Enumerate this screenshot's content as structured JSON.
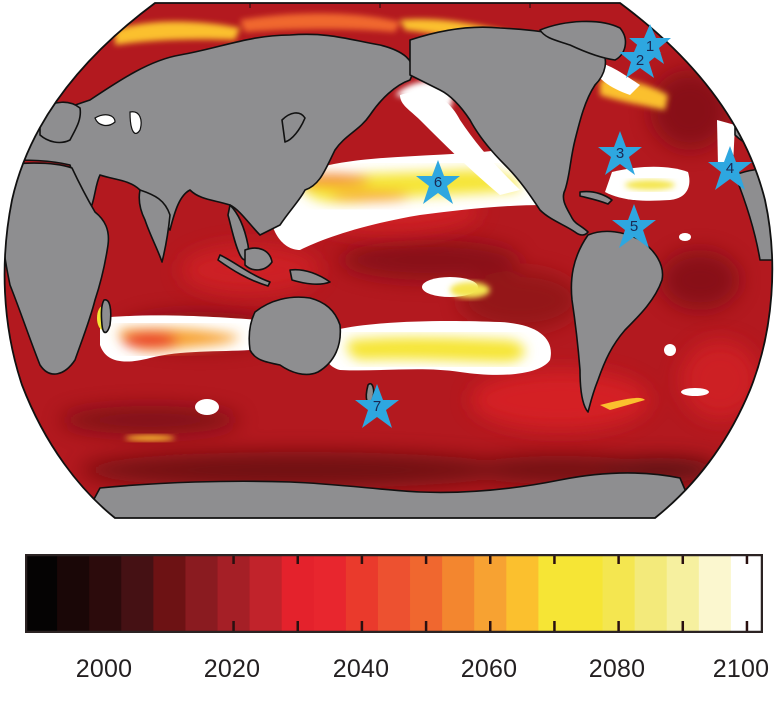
{
  "chart_data": {
    "type": "heatmap",
    "subtype": "global-map (Robinson-like projection, Pacific-centered)",
    "title": "",
    "xlabel": "",
    "ylabel": "",
    "colorbar": {
      "label": "",
      "range": [
        1990,
        2100
      ],
      "ticks": [
        2000,
        2020,
        2040,
        2060,
        2080,
        2100
      ],
      "tick_labels": [
        "2000",
        "2020",
        "2040",
        "2060",
        "2080",
        "2100"
      ],
      "bands": [
        {
          "from": 1990,
          "to": 1995,
          "color": "#050303"
        },
        {
          "from": 1995,
          "to": 2000,
          "color": "#1a0707"
        },
        {
          "from": 2000,
          "to": 2005,
          "color": "#2c0b0c"
        },
        {
          "from": 2005,
          "to": 2010,
          "color": "#451114"
        },
        {
          "from": 2010,
          "to": 2015,
          "color": "#6d1214"
        },
        {
          "from": 2015,
          "to": 2020,
          "color": "#8a1b20"
        },
        {
          "from": 2020,
          "to": 2025,
          "color": "#a51f26"
        },
        {
          "from": 2025,
          "to": 2030,
          "color": "#c1232b"
        },
        {
          "from": 2030,
          "to": 2035,
          "color": "#e4222c"
        },
        {
          "from": 2035,
          "to": 2040,
          "color": "#e8262e"
        },
        {
          "from": 2040,
          "to": 2045,
          "color": "#ea3a2c"
        },
        {
          "from": 2045,
          "to": 2050,
          "color": "#ed5130"
        },
        {
          "from": 2050,
          "to": 2055,
          "color": "#f0672f"
        },
        {
          "from": 2055,
          "to": 2060,
          "color": "#f3862f"
        },
        {
          "from": 2060,
          "to": 2065,
          "color": "#f7a232"
        },
        {
          "from": 2065,
          "to": 2070,
          "color": "#fbc02e"
        },
        {
          "from": 2070,
          "to": 2080,
          "color": "#f6e535"
        },
        {
          "from": 2080,
          "to": 2085,
          "color": "#f4e650"
        },
        {
          "from": 2085,
          "to": 2090,
          "color": "#f3ea7b"
        },
        {
          "from": 2090,
          "to": 2095,
          "color": "#f6f09f"
        },
        {
          "from": 2095,
          "to": 2100,
          "color": "#fbf7cf"
        },
        {
          "from": 2100,
          "to": 2105,
          "color": "#ffffff"
        }
      ]
    },
    "legend": {
      "position": "bottom",
      "orientation": "horizontal"
    },
    "grid": false,
    "land_color": "#8e8e90",
    "coastline_color": "#111111",
    "markers": [
      {
        "id": "1",
        "shape": "star",
        "color": "#2ea7e0",
        "region": "Labrador Sea / North Atlantic"
      },
      {
        "id": "2",
        "shape": "star",
        "color": "#2ea7e0",
        "region": "Labrador coast"
      },
      {
        "id": "3",
        "shape": "star",
        "color": "#2ea7e0",
        "region": "Western subtropical North Atlantic (off US east coast)"
      },
      {
        "id": "4",
        "shape": "star",
        "color": "#2ea7e0",
        "region": "Eastern North Atlantic (off NW Africa)"
      },
      {
        "id": "5",
        "shape": "star",
        "color": "#2ea7e0",
        "region": "Caribbean / northern South America"
      },
      {
        "id": "6",
        "shape": "star",
        "color": "#2ea7e0",
        "region": "Subtropical North Pacific (near Hawaii)"
      },
      {
        "id": "7",
        "shape": "star",
        "color": "#2ea7e0",
        "region": "Southwest Pacific (off New Zealand)"
      }
    ],
    "notable_regions": [
      {
        "region": "Subtropical North Pacific gyre",
        "approx_year": "2080-2100+"
      },
      {
        "region": "Subtropical South Pacific band",
        "approx_year": "2070-2100+"
      },
      {
        "region": "Subtropical South Indian Ocean band",
        "approx_year": "2050-2100+"
      },
      {
        "region": "Subtropical North Atlantic (Sargasso)",
        "approx_year": "2080-2100+"
      },
      {
        "region": "Southern Ocean",
        "approx_year": "2000-2030"
      },
      {
        "region": "Tropical Indian / Equatorial Pacific",
        "approx_year": "2010-2040"
      }
    ]
  },
  "map": {
    "markers": [
      {
        "label": "1"
      },
      {
        "label": "2"
      },
      {
        "label": "3"
      },
      {
        "label": "4"
      },
      {
        "label": "5"
      },
      {
        "label": "6"
      },
      {
        "label": "7"
      }
    ]
  },
  "colorbar": {
    "tick_labels": [
      "2000",
      "2020",
      "2040",
      "2060",
      "2080",
      "2100"
    ]
  }
}
